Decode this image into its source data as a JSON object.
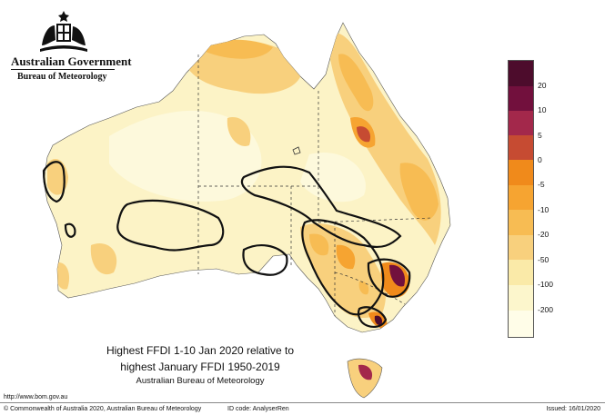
{
  "logo": {
    "line1": "Australian Government",
    "line2": "Bureau of Meteorology",
    "crest_icon": "coat-of-arms-icon"
  },
  "map": {
    "title_line1": "Highest FFDI 1-10 Jan 2020 relative to",
    "title_line2": "highest January FFDI 1950-2019",
    "source": "Australian Bureau of Meteorology"
  },
  "legend": {
    "colors": [
      "#4d0c2c",
      "#72103d",
      "#a3284b",
      "#c64b32",
      "#f08a1b",
      "#f6a431",
      "#f7bc53",
      "#f8d07d",
      "#faeaa8",
      "#fcf6cc",
      "#fffde8"
    ],
    "labels": [
      "20",
      "10",
      "5",
      "0",
      "-5",
      "-10",
      "-20",
      "-50",
      "-100",
      "-200"
    ]
  },
  "footer": {
    "url": "http://www.bom.gov.au",
    "copyright": "© Commonwealth of Australia 2020, Australian Bureau of Meteorology",
    "id_code": "ID code: AnalyserRen",
    "issued": "Issued: 16/01/2020"
  }
}
